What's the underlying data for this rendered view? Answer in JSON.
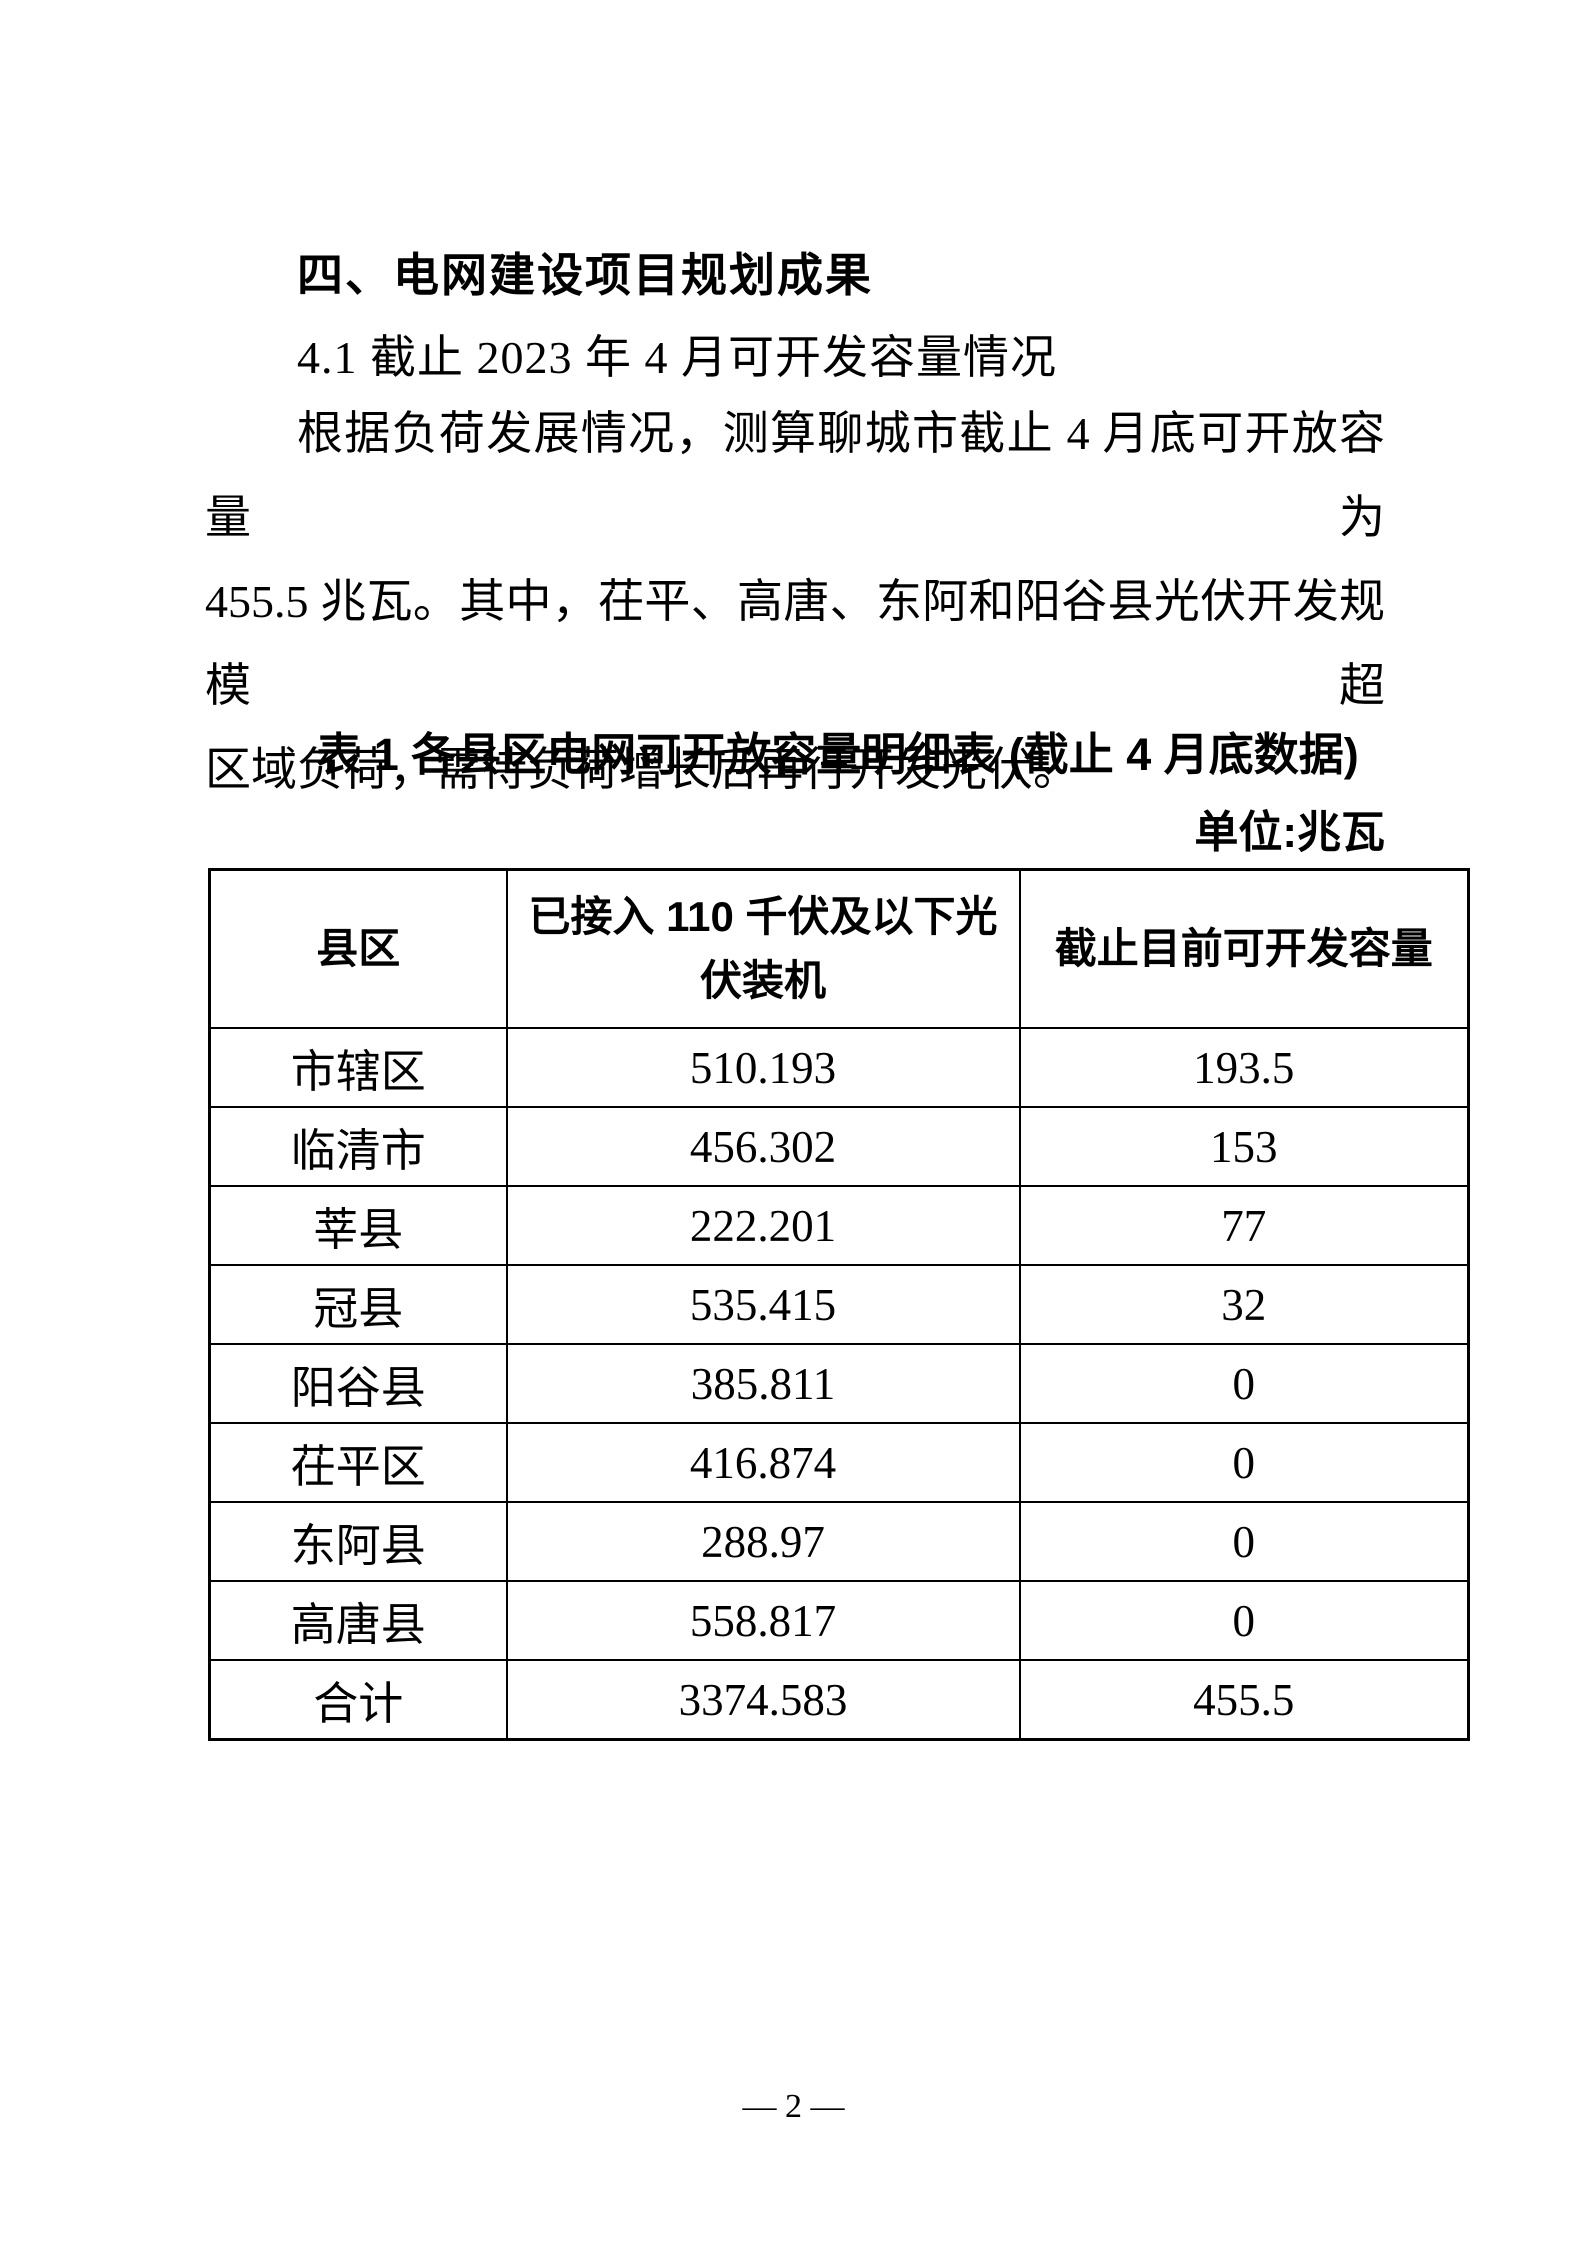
{
  "page": {
    "heading": "四、电网建设项目规划成果",
    "subheading": "4.1 截止 2023 年 4 月可开发容量情况",
    "paragraph_lines": [
      "根据负荷发展情况，测算聊城市截止 4 月底可开放容量为",
      "455.5 兆瓦。其中，茌平、高唐、东阿和阳谷县光伏开发规模超",
      "区域负荷，需待负荷增长后再行开发光伏。"
    ],
    "table_title": "表 1 各县区电网可开放容量明细表 (截止 4 月底数据)",
    "unit_label": "单位:兆瓦",
    "page_number": "— 2 —"
  },
  "table": {
    "headers": [
      "县区",
      "已接入 110 千伏及以下光伏装机",
      "截止目前可开发容量"
    ],
    "rows": [
      [
        "市辖区",
        "510.193",
        "193.5"
      ],
      [
        "临清市",
        "456.302",
        "153"
      ],
      [
        "莘县",
        "222.201",
        "77"
      ],
      [
        "冠县",
        "535.415",
        "32"
      ],
      [
        "阳谷县",
        "385.811",
        "0"
      ],
      [
        "茌平区",
        "416.874",
        "0"
      ],
      [
        "东阿县",
        "288.97",
        "0"
      ],
      [
        "高唐县",
        "558.817",
        "0"
      ],
      [
        "合计",
        "3374.583",
        "455.5"
      ]
    ],
    "colors": {
      "border": "#000000",
      "text": "#000000",
      "background": "#ffffff"
    }
  }
}
